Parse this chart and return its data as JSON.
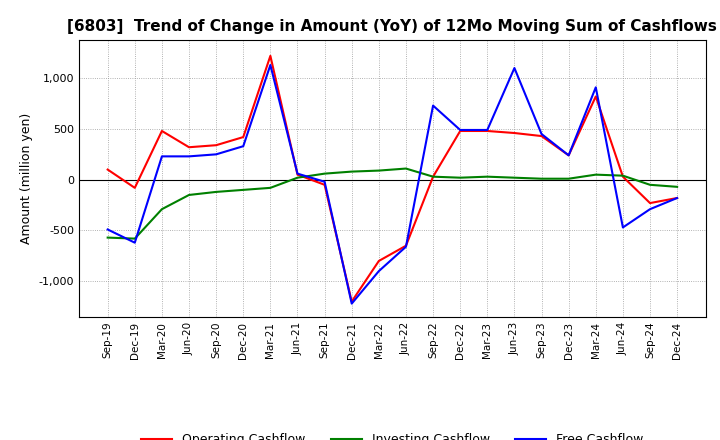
{
  "title": "[6803]  Trend of Change in Amount (YoY) of 12Mo Moving Sum of Cashflows",
  "ylabel": "Amount (million yen)",
  "x_labels": [
    "Sep-19",
    "Dec-19",
    "Mar-20",
    "Jun-20",
    "Sep-20",
    "Dec-20",
    "Mar-21",
    "Jun-21",
    "Sep-21",
    "Dec-21",
    "Mar-22",
    "Jun-22",
    "Sep-22",
    "Dec-22",
    "Mar-23",
    "Jun-23",
    "Sep-23",
    "Dec-23",
    "Mar-24",
    "Jun-24",
    "Sep-24",
    "Dec-24"
  ],
  "operating": [
    100,
    -80,
    480,
    320,
    340,
    420,
    1220,
    50,
    -50,
    -1200,
    -800,
    -650,
    30,
    480,
    480,
    460,
    430,
    240,
    820,
    30,
    -230,
    -180
  ],
  "investing": [
    -570,
    -580,
    -290,
    -150,
    -120,
    -100,
    -80,
    20,
    60,
    80,
    90,
    110,
    30,
    20,
    30,
    20,
    10,
    10,
    50,
    40,
    -50,
    -70
  ],
  "free": [
    -490,
    -620,
    230,
    230,
    250,
    330,
    1130,
    60,
    -20,
    -1220,
    -900,
    -660,
    730,
    490,
    490,
    1100,
    450,
    240,
    910,
    -470,
    -290,
    -180
  ],
  "ylim": [
    -1350,
    1380
  ],
  "yticks": [
    -1000,
    -500,
    0,
    500,
    1000
  ],
  "operating_color": "#FF0000",
  "investing_color": "#008000",
  "free_color": "#0000FF",
  "line_width": 1.5,
  "bg_color": "#FFFFFF",
  "grid_color": "#999999"
}
